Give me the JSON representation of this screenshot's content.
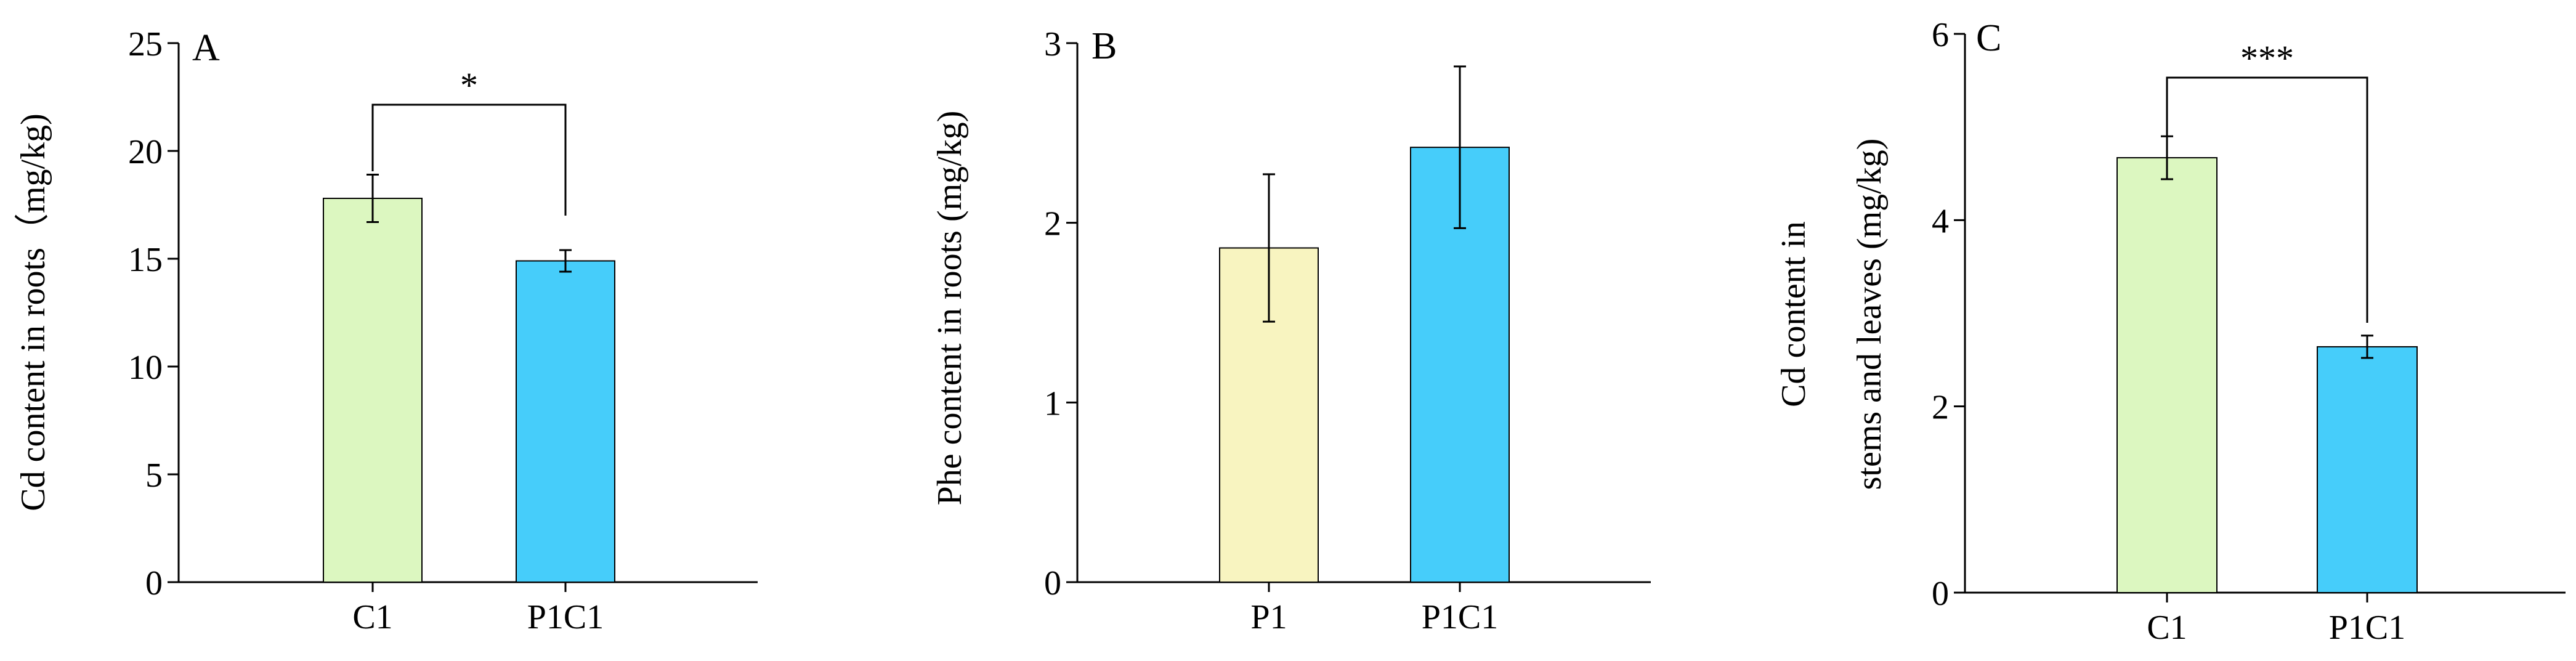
{
  "chart_data": [
    {
      "type": "bar",
      "panel": "A",
      "categories": [
        "C1",
        "P1C1"
      ],
      "values": [
        17.8,
        14.9
      ],
      "errors": [
        1.1,
        0.5
      ],
      "colors": [
        "#dcf7c0",
        "#46cdfa"
      ],
      "ylabel": "Cd content in roots（mg/kg)",
      "ylim": [
        0,
        25
      ],
      "yticks": [
        0,
        5,
        10,
        15,
        20,
        25
      ],
      "ytick_labels": [
        "0",
        "5",
        "10",
        "15",
        "20",
        "25"
      ],
      "significance": {
        "between": [
          0,
          1
        ],
        "label": "*"
      }
    },
    {
      "type": "bar",
      "panel": "B",
      "categories": [
        "P1",
        "P1C1"
      ],
      "values": [
        1.86,
        2.42
      ],
      "errors": [
        0.41,
        0.45
      ],
      "colors": [
        "#f8f4c0",
        "#46cdfa"
      ],
      "ylabel": "Phe content in roots (mg/kg)",
      "ylim": [
        0,
        3
      ],
      "yticks": [
        0,
        1,
        2,
        3
      ],
      "ytick_labels": [
        "0",
        "1",
        "2",
        "3"
      ],
      "significance": null
    },
    {
      "type": "bar",
      "panel": "C",
      "categories": [
        "C1",
        "P1C1"
      ],
      "values": [
        4.67,
        2.64
      ],
      "errors": [
        0.23,
        0.12
      ],
      "colors": [
        "#dcf7c0",
        "#46cdfa"
      ],
      "ylabel": [
        "Cd content in",
        "stems and leaves (mg/kg)"
      ],
      "ylim": [
        0,
        6
      ],
      "yticks": [
        0,
        2,
        4,
        6
      ],
      "ytick_labels": [
        "0",
        "2",
        "4",
        "6"
      ],
      "significance": {
        "between": [
          0,
          1
        ],
        "label": "***"
      }
    }
  ]
}
